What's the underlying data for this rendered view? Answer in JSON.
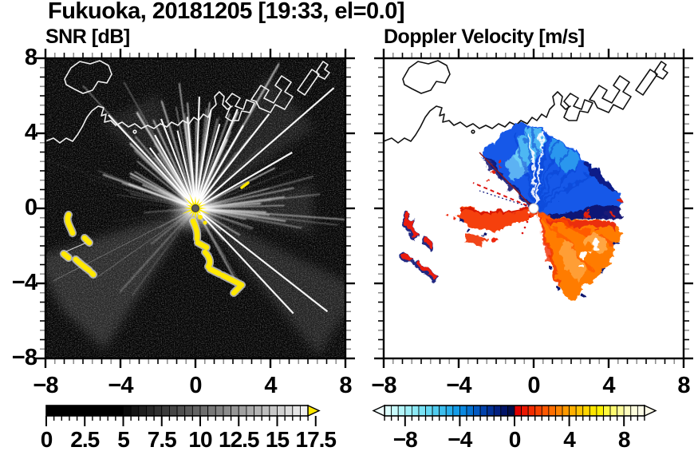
{
  "title": "Fukuoka, 20181205 [19:33, el=0.0]",
  "panels": {
    "snr": {
      "title": "SNR [dB]",
      "x_tick_labels": [
        "−8",
        "−4",
        "0",
        "4",
        "8"
      ],
      "y_tick_labels": [
        "8",
        "4",
        "0",
        "−4",
        "−8"
      ]
    },
    "velocity": {
      "title": "Doppler Velocity [m/s]",
      "x_tick_labels": [
        "−8",
        "−4",
        "0",
        "4",
        "8"
      ]
    }
  },
  "colorbars": {
    "snr": {
      "unit": "dB",
      "tick_labels": [
        "0",
        "2.5",
        "5",
        "7.5",
        "10",
        "12.5",
        "15",
        "17.5"
      ],
      "tick_values": [
        0,
        2.5,
        5,
        7.5,
        10,
        12.5,
        15,
        17.5
      ],
      "over_arrow_color": "#ffe800",
      "segments": [
        "#000000",
        "#000000",
        "#000000",
        "#000000",
        "#000000",
        "#000000",
        "#000000",
        "#000000",
        "#000000",
        "#000000",
        "#0a0a0a",
        "#141414",
        "#1e1e1e",
        "#282828",
        "#323232",
        "#3c3c3c",
        "#464646",
        "#505050",
        "#5a5a5a",
        "#646464",
        "#6e6e6e",
        "#787878",
        "#828282",
        "#8c8c8c",
        "#969696",
        "#a0a0a0",
        "#aaaaaa",
        "#b4b4b4",
        "#bebebe",
        "#c8c8c8",
        "#d2d2d2",
        "#dcdcdc",
        "#e6e6e6",
        "#f0f0f0"
      ]
    },
    "velocity": {
      "unit": "m/s",
      "tick_labels": [
        "−8",
        "−4",
        "0",
        "4",
        "8"
      ],
      "tick_values": [
        -8,
        -4,
        0,
        4,
        8
      ],
      "under_arrow_color": "#f2ffff",
      "over_arrow_color": "#fbf9e8",
      "segments": [
        "#dcffff",
        "#c8fbfd",
        "#b4f6fb",
        "#a0f0f9",
        "#8ceaf7",
        "#78e2f5",
        "#64d8f3",
        "#50ccf0",
        "#3cbeee",
        "#28aeeb",
        "#149ce8",
        "#0a88e0",
        "#0470d0",
        "#0258c0",
        "#0242ac",
        "#023096",
        "#022080",
        "#021468",
        "#020e48",
        "#e00000",
        "#ea1600",
        "#f42c00",
        "#fa4200",
        "#ff5800",
        "#ff6e00",
        "#ff8400",
        "#ff9a00",
        "#ffb000",
        "#ffc400",
        "#ffd600",
        "#ffe600",
        "#fff200",
        "#fff83c",
        "#fffb70",
        "#fffd9a",
        "#fffec0",
        "#fffede",
        "#fdfce6"
      ]
    }
  },
  "chart_data": [
    {
      "type": "heatmap",
      "title": "SNR [dB]",
      "xlabel": "",
      "ylabel": "",
      "xlim": [
        -8,
        8
      ],
      "ylim": [
        -8,
        8
      ],
      "xticks": [
        -8,
        -4,
        0,
        4,
        8
      ],
      "yticks": [
        8,
        4,
        0,
        -4,
        -8
      ],
      "minor_tick_step": 0.5,
      "grid": false,
      "colorbar": {
        "orientation": "horizontal",
        "ticks": [
          0,
          2.5,
          5,
          7.5,
          10,
          12.5,
          15,
          17.5
        ],
        "range": [
          0,
          17
        ],
        "over_range_arrow": "yellow",
        "colormap": "black (0–5 dB) ramping to white (~17 dB), yellow over-range arrow"
      },
      "features": [
        {
          "name": "radar_site",
          "x": 0,
          "y": 0,
          "description": "radar at origin marked by dark dot inside bright yellow spiky high-SNR burst"
        },
        {
          "name": "clutter_spokes",
          "description": "white radial streaks from origin, densest toward N–NE–E, long spokes to upper-right and lower-right, broad faint gray lobe toward SW"
        },
        {
          "name": "high_snr_chain",
          "description": "yellow arc of patches from about (0.3,-0.7) curving to (2.3,-4.3)"
        },
        {
          "name": "high_snr_patches_west",
          "description": "yellow comma-shaped patches near (-6.8,-0.5), (-6.4,-1.6), (-7.0,-2.6), (-6.2,-3.0), (-5.6,-3.4)"
        },
        {
          "name": "small_echo",
          "description": "small yellow dash near (2.6, 1.2)"
        },
        {
          "name": "coastline",
          "description": "white Hakata Bay coastline across upper half, island near (-6.5, 7), angular port structures from (1.5,5) rising to top edge near (6.8,8)"
        },
        {
          "name": "background",
          "description": "black with faint gray speckle noise"
        }
      ]
    },
    {
      "type": "heatmap",
      "title": "Doppler Velocity [m/s]",
      "xlabel": "",
      "ylabel": "",
      "xlim": [
        -8,
        8
      ],
      "ylim": [
        -8,
        8
      ],
      "xticks": [
        -8,
        -4,
        0,
        4,
        8
      ],
      "yticks": [
        8,
        4,
        0,
        -4,
        -8
      ],
      "minor_tick_step": 0.5,
      "grid": false,
      "colorbar": {
        "orientation": "horizontal",
        "ticks": [
          -8,
          -4,
          0,
          4,
          8
        ],
        "range": [
          -9.5,
          9.5
        ],
        "under_range_arrow": "pale cyan",
        "over_range_arrow": "cream",
        "colormap": "pale cyan → cyan → blue → navy for negative velocities; bright red → orange → yellow → cream for positive"
      },
      "features": [
        {
          "name": "radar_site",
          "x": 0,
          "y": 0,
          "description": "white hole at radar origin"
        },
        {
          "name": "negative_fan",
          "velocity_sign": "toward radar (blue)",
          "description": "ragged blue/navy fan from origin spanning NW through NE to E, reaching about (−2.9,2.9) to (0,4.6) to (4.7,0.3); navy band along its southern edge with scattered red specks"
        },
        {
          "name": "positive_fan",
          "velocity_sign": "away from radar (red/orange)",
          "description": "ragged orange/red fan from origin spanning E through S, reaching about (4.6,-1.5), (2,-4.8); navy fringe specks and small white holes inside"
        },
        {
          "name": "west_arm",
          "description": "narrow red/orange wedge from origin toward WSW reaching about (-4.3,-0.3), with thin dashed red and navy rays just above it toward (-3.2,1.4)"
        },
        {
          "name": "west_patches",
          "description": "red patches with navy fringes near (-6.8,-0.5) to (-5.6,-3.5)"
        },
        {
          "name": "coastline",
          "description": "same coastline drawn in black on white background"
        }
      ]
    }
  ]
}
